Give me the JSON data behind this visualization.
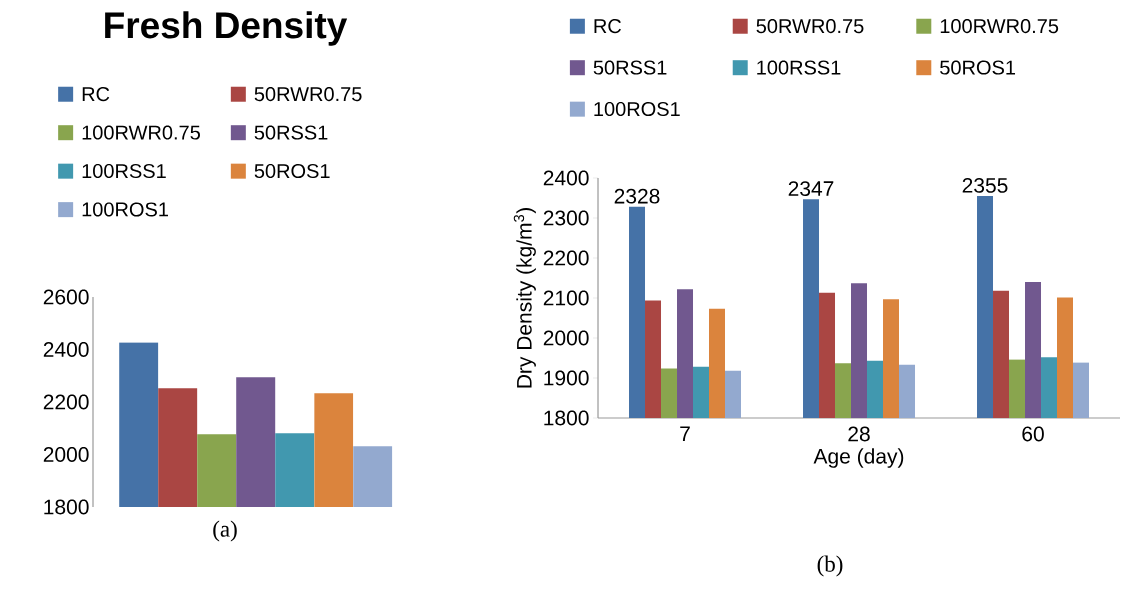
{
  "chart_data": [
    {
      "type": "bar",
      "title": "Fresh Density",
      "categories": [
        null
      ],
      "ylim": [
        1800,
        2600
      ],
      "yticks": [
        1800,
        2000,
        2200,
        2400,
        2600
      ],
      "legend": "top",
      "annotations": [
        "(a)"
      ],
      "series": [
        {
          "name": "RC",
          "color": "#4572a7",
          "values": [
            2427
          ]
        },
        {
          "name": "50RWR0.75",
          "color": "#aa4643",
          "values": [
            2252
          ]
        },
        {
          "name": "100RWR0.75",
          "color": "#89a54e",
          "values": [
            2077
          ]
        },
        {
          "name": "50RSS1",
          "color": "#71588f",
          "values": [
            2294
          ]
        },
        {
          "name": "100RSS1",
          "color": "#4198af",
          "values": [
            2081
          ]
        },
        {
          "name": "50ROS1",
          "color": "#db843d",
          "values": [
            2233
          ]
        },
        {
          "name": "100ROS1",
          "color": "#93a9cf",
          "values": [
            2031
          ]
        }
      ]
    },
    {
      "type": "bar",
      "categories": [
        "7",
        "28",
        "60"
      ],
      "xlabel": "Age (day)",
      "ylabel": "Dry Density (kg/m$^{3}$)",
      "ylim": [
        1800,
        2400
      ],
      "yticks": [
        1800,
        1900,
        2000,
        2100,
        2200,
        2300,
        2400
      ],
      "legend": "top",
      "annotations": [
        "(b)"
      ],
      "series": [
        {
          "name": "RC",
          "color": "#4572a7",
          "values": [
            2328,
            2347,
            2355
          ],
          "value_labels": [
            "2328",
            "2347",
            "2355"
          ]
        },
        {
          "name": "50RWR0.75",
          "color": "#aa4643",
          "values": [
            2094,
            2113,
            2118
          ]
        },
        {
          "name": "100RWR0.75",
          "color": "#89a54e",
          "values": [
            1924,
            1937,
            1946
          ]
        },
        {
          "name": "50RSS1",
          "color": "#71588f",
          "values": [
            2122,
            2137,
            2140
          ]
        },
        {
          "name": "100RSS1",
          "color": "#4198af",
          "values": [
            1928,
            1943,
            1952
          ]
        },
        {
          "name": "50ROS1",
          "color": "#db843d",
          "values": [
            2073,
            2097,
            2101
          ]
        },
        {
          "name": "100ROS1",
          "color": "#93a9cf",
          "values": [
            1918,
            1933,
            1939
          ]
        }
      ]
    }
  ]
}
